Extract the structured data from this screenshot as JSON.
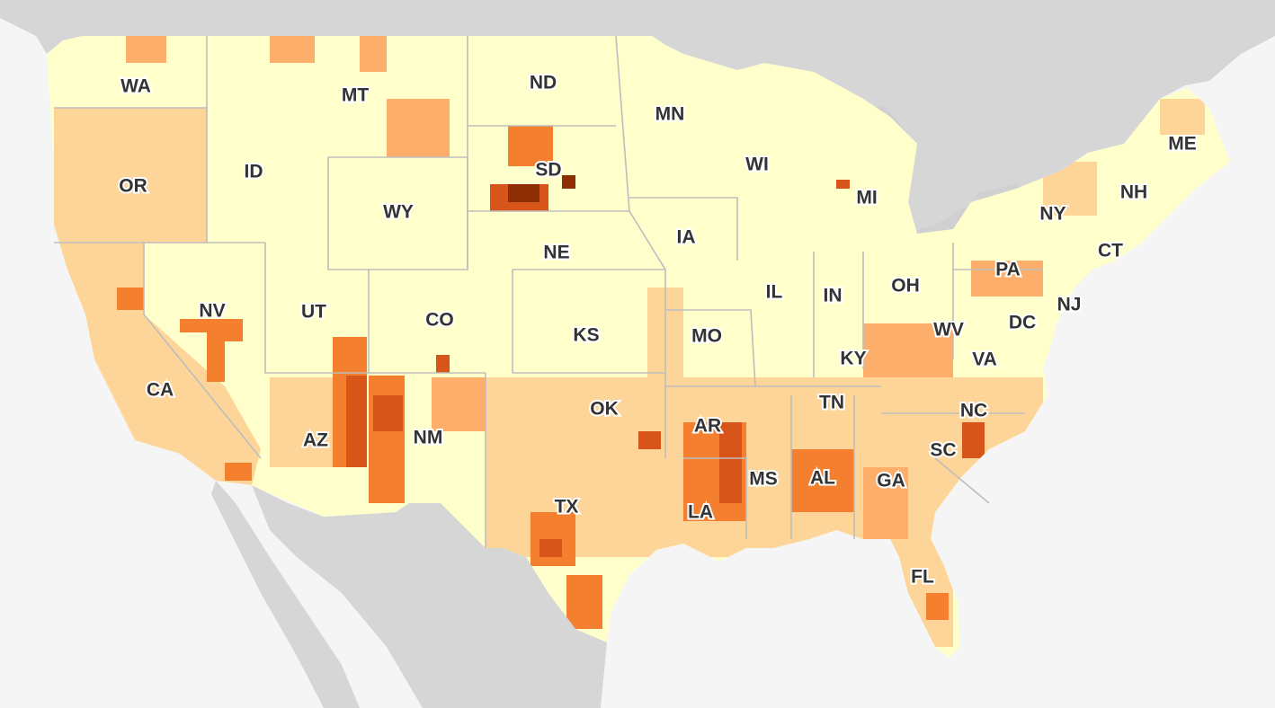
{
  "map": {
    "subject": "County-level choropleth of the contiguous United States",
    "colors": {
      "water": "#f5f5f5",
      "land_outside": "#d6d6d6",
      "state_border": "#bdbdbd",
      "class_1": "#ffffcc",
      "class_2": "#fed599",
      "class_3": "#fdae6b",
      "class_4": "#f47f2e",
      "class_5": "#d75518",
      "class_6": "#8c2d04"
    },
    "state_labels": [
      "WA",
      "OR",
      "CA",
      "ID",
      "NV",
      "MT",
      "WY",
      "UT",
      "AZ",
      "ND",
      "SD",
      "NE",
      "CO",
      "NM",
      "KS",
      "OK",
      "TX",
      "MN",
      "IA",
      "MO",
      "AR",
      "LA",
      "WI",
      "IL",
      "MI",
      "IN",
      "OH",
      "KY",
      "TN",
      "MS",
      "AL",
      "GA",
      "FL",
      "SC",
      "NC",
      "VA",
      "WV",
      "DC",
      "PA",
      "NY",
      "NJ",
      "CT",
      "NH",
      "ME"
    ]
  }
}
